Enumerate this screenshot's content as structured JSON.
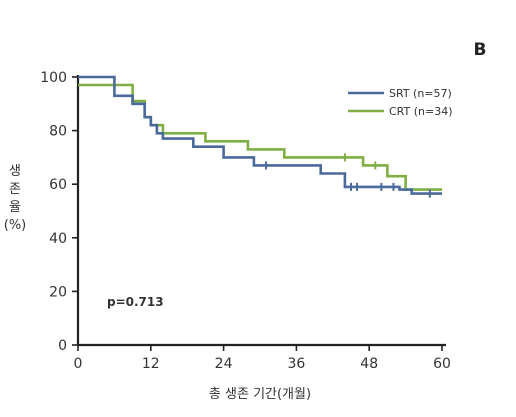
{
  "chart_data": {
    "type": "line",
    "panel_label": "B",
    "xlabel": "총 생존 기간(개월)",
    "ylabel_lines": [
      "생",
      "존",
      "율",
      "(%)"
    ],
    "xlim": [
      0,
      60
    ],
    "ylim": [
      0,
      100
    ],
    "x_ticks": [
      0,
      12,
      24,
      36,
      48,
      60
    ],
    "y_ticks": [
      0,
      20,
      40,
      60,
      80,
      100
    ],
    "grid": false,
    "legend_position": "top-right",
    "annotation": "p=0.713",
    "series": [
      {
        "name": "SRT (n=57)",
        "color": "#4a6a9c",
        "x": [
          0,
          6,
          6,
          9,
          9,
          11,
          11,
          12,
          12,
          13,
          13,
          14,
          14,
          19,
          19,
          24,
          24,
          29,
          29,
          40,
          40,
          44,
          44,
          53,
          53,
          55,
          55,
          60
        ],
        "y": [
          100,
          100,
          93,
          93,
          90,
          90,
          85,
          85,
          82,
          82,
          79,
          79,
          77,
          77,
          74,
          74,
          70,
          70,
          67,
          67,
          64,
          64,
          59,
          59,
          58,
          58,
          56.5,
          56.5
        ],
        "censored": [
          {
            "x": 31,
            "y": 67
          },
          {
            "x": 45,
            "y": 59
          },
          {
            "x": 46,
            "y": 59
          },
          {
            "x": 50,
            "y": 59
          },
          {
            "x": 52,
            "y": 59
          },
          {
            "x": 58,
            "y": 56.5
          }
        ]
      },
      {
        "name": "CRT (n=34)",
        "color": "#7faf43",
        "x": [
          0,
          9,
          9,
          11,
          11,
          12,
          12,
          14,
          14,
          21,
          21,
          28,
          28,
          34,
          34,
          47,
          47,
          51,
          51,
          54,
          54,
          60
        ],
        "y": [
          97,
          97,
          91,
          91,
          85,
          85,
          82,
          82,
          79,
          79,
          76,
          76,
          73,
          73,
          70,
          70,
          67,
          67,
          63,
          63,
          58,
          58
        ],
        "censored": [
          {
            "x": 44,
            "y": 70
          },
          {
            "x": 49,
            "y": 67
          }
        ]
      }
    ]
  }
}
